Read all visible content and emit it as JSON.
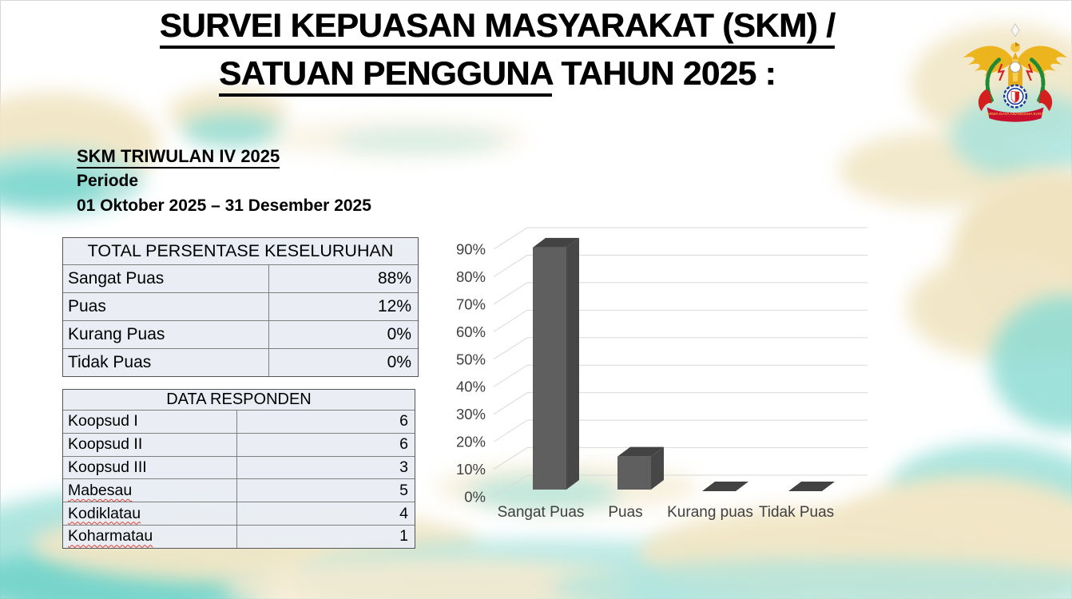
{
  "slide": {
    "title_line1": "SURVEI KEPUASAN MASYARAKAT (SKM) /",
    "title_line2_underlined": "SATUAN PENGGUNA",
    "title_line2_rest": " TAHUN 2025 :",
    "subtitle_heading": "SKM TRIWULAN IV 2025",
    "period_label": "Periode",
    "period_value": "01 Oktober 2025 – 31 Desember 2025"
  },
  "logo": {
    "name": "koharmatau-unit-emblem",
    "motto": "SARWA DAYA ANANGGHA KARYA"
  },
  "tables": {
    "persentase": {
      "header": "TOTAL PERSENTASE KESELURUHAN",
      "rows": [
        {
          "label": "Sangat Puas",
          "value": "88%"
        },
        {
          "label": "Puas",
          "value": "12%"
        },
        {
          "label": "Kurang Puas",
          "value": "0%"
        },
        {
          "label": "Tidak Puas",
          "value": "0%"
        }
      ]
    },
    "responden": {
      "header": "DATA RESPONDEN",
      "rows": [
        {
          "label": "Koopsud I",
          "value": "6",
          "misspelled": false
        },
        {
          "label": "Koopsud II",
          "value": "6",
          "misspelled": false
        },
        {
          "label": "Koopsud III",
          "value": "3",
          "misspelled": false
        },
        {
          "label": "Mabesau",
          "value": "5",
          "misspelled": true
        },
        {
          "label": "Kodiklatau",
          "value": "4",
          "misspelled": true
        },
        {
          "label": "Koharmatau",
          "value": "1",
          "misspelled": true
        }
      ]
    }
  },
  "chart_data": {
    "type": "bar",
    "style": "3d-column",
    "title": "",
    "categories": [
      "Sangat Puas",
      "Puas",
      "Kurang puas",
      "Tidak Puas"
    ],
    "values": [
      88,
      12,
      0,
      0
    ],
    "unit": "%",
    "ylim": [
      0,
      90
    ],
    "ytick_step": 10,
    "ytick_labels": [
      "0%",
      "10%",
      "20%",
      "30%",
      "40%",
      "50%",
      "60%",
      "70%",
      "80%",
      "90%"
    ],
    "grid": true,
    "legend": false,
    "bar_color": "#5f5f5f"
  },
  "colors": {
    "table_fill": "#e9edf4",
    "table_border": "#595959",
    "bar_front": "#5f5f5f",
    "bar_top": "#434343",
    "bar_side": "#474747",
    "gridline": "#d9d9d9",
    "axis_text": "#404040",
    "spellcheck_red": "#e03c31",
    "cloud_cream": "#f1e6c6",
    "cloud_teal": "#8edcd4"
  }
}
